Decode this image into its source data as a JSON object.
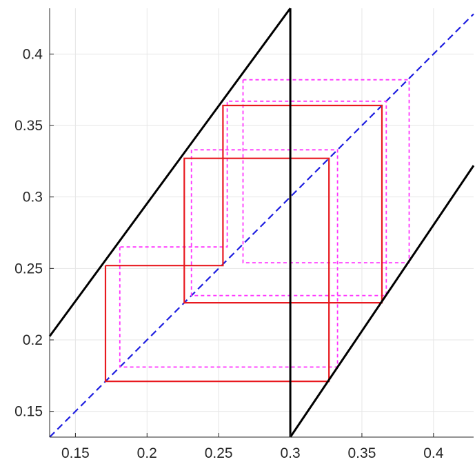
{
  "chart_data": {
    "type": "line",
    "title": "",
    "xlabel": "",
    "ylabel": "",
    "xlim": [
      0.132,
      0.428
    ],
    "ylim": [
      0.132,
      0.432
    ],
    "grid": true,
    "xticks": [
      0.15,
      0.2,
      0.25,
      0.3,
      0.35,
      0.4
    ],
    "yticks": [
      0.15,
      0.2,
      0.25,
      0.3,
      0.35,
      0.4
    ],
    "xtick_labels": [
      "0.15",
      "0.2",
      "0.25",
      "0.3",
      "0.35",
      "0.4"
    ],
    "ytick_labels": [
      "0.15",
      "0.2",
      "0.25",
      "0.3",
      "0.35",
      "0.4"
    ],
    "colors": {
      "map": "#000000",
      "diagonal": "#1f1fe0",
      "orbit_solid": "#e8191f",
      "orbit_dashed": "#ff33ff",
      "grid": "#e6e6e6",
      "axis": "#262626"
    },
    "series": [
      {
        "style": "map",
        "x": [
          0.132,
          0.3
        ],
        "y": [
          0.2025,
          0.432
        ]
      },
      {
        "style": "map",
        "x": [
          0.3,
          0.3
        ],
        "y": [
          0.132,
          0.432
        ]
      },
      {
        "style": "map",
        "x": [
          0.3,
          0.428
        ],
        "y": [
          0.132,
          0.322
        ]
      },
      {
        "style": "diagonal",
        "x": [
          0.132,
          0.428
        ],
        "y": [
          0.132,
          0.428
        ]
      },
      {
        "style": "orbit_solid",
        "x": [
          0.171,
          0.171,
          0.327,
          0.327,
          0.226,
          0.226,
          0.364,
          0.364,
          0.253,
          0.253,
          0.171
        ],
        "y": [
          0.252,
          0.171,
          0.171,
          0.327,
          0.327,
          0.226,
          0.226,
          0.364,
          0.364,
          0.252,
          0.252
        ]
      },
      {
        "style": "orbit_dashed",
        "x": [
          0.181,
          0.181,
          0.333,
          0.333,
          0.231,
          0.231,
          0.367,
          0.367,
          0.256,
          0.256,
          0.181
        ],
        "y": [
          0.265,
          0.181,
          0.181,
          0.333,
          0.333,
          0.231,
          0.231,
          0.367,
          0.367,
          0.265,
          0.265
        ]
      },
      {
        "style": "orbit_dashed",
        "x": [
          0.267,
          0.383,
          0.383,
          0.267,
          0.267
        ],
        "y": [
          0.382,
          0.382,
          0.254,
          0.254,
          0.382
        ]
      }
    ]
  }
}
